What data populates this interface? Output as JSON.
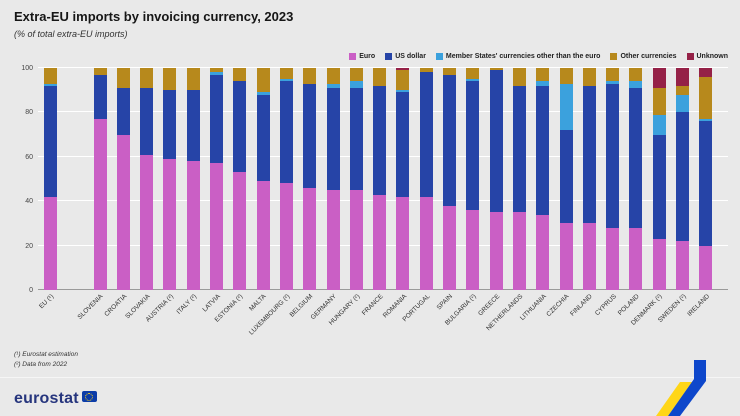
{
  "chart_data": {
    "type": "bar",
    "stacked": true,
    "title": "Extra-EU imports by invoicing currency, 2023",
    "subtitle": "(% of total extra-EU imports)",
    "ylabel": "",
    "xlabel": "",
    "ylim": [
      0,
      100
    ],
    "yticks": [
      0,
      20,
      40,
      60,
      80,
      100
    ],
    "grid": "horizontal-white",
    "legend_position": "top",
    "categories": [
      "EU (¹)",
      "SLOVENIA",
      "CROATIA",
      "SLOVAKIA",
      "AUSTRIA (²)",
      "ITALY (²)",
      "LATVIA",
      "ESTONIA (²)",
      "MALTA",
      "LUXEMBOURG (²)",
      "BELGIUM",
      "GERMANY",
      "HUNGARY (²)",
      "FRANCE",
      "ROMANIA",
      "PORTUGAL",
      "SPAIN",
      "BULGARIA (²)",
      "GREECE",
      "NETHERLANDS",
      "LITHUANIA",
      "CZECHIA",
      "FINLAND",
      "CYPRUS",
      "POLAND",
      "DENMARK (²)",
      "SWEDEN (²)",
      "IRELAND"
    ],
    "series": [
      {
        "name": "Euro",
        "color": "#ca5fc5",
        "values": [
          42,
          77,
          70,
          61,
          59,
          58,
          57,
          53,
          49,
          48,
          46,
          45,
          45,
          43,
          42,
          42,
          38,
          36,
          35,
          35,
          34,
          30,
          30,
          28,
          28,
          23,
          22,
          20
        ]
      },
      {
        "name": "US dollar",
        "color": "#2644a7",
        "values": [
          50,
          20,
          21,
          30,
          31,
          32,
          40,
          41,
          39,
          46,
          47,
          46,
          46,
          49,
          47,
          56,
          59,
          58,
          64,
          57,
          58,
          42,
          62,
          65,
          63,
          47,
          58,
          56
        ]
      },
      {
        "name": "Member States' currencies other than the euro",
        "color": "#3ba1dd",
        "values": [
          1,
          0,
          0,
          0,
          0,
          0,
          1,
          0,
          1,
          1,
          0,
          2,
          3,
          0,
          1,
          0,
          0,
          1,
          0,
          0,
          2,
          21,
          0,
          1,
          3,
          9,
          8,
          1
        ]
      },
      {
        "name": "Other currencies",
        "color": "#b7891c",
        "values": [
          7,
          3,
          9,
          9,
          10,
          10,
          2,
          6,
          11,
          5,
          7,
          7,
          6,
          8,
          9,
          2,
          3,
          5,
          1,
          8,
          6,
          7,
          8,
          6,
          6,
          12,
          4,
          19
        ]
      },
      {
        "name": "Unknown",
        "color": "#952147",
        "values": [
          0,
          0,
          0,
          0,
          0,
          0,
          0,
          0,
          0,
          0,
          0,
          0,
          0,
          0,
          1,
          0,
          0,
          0,
          0,
          0,
          0,
          0,
          0,
          0,
          0,
          9,
          8,
          4
        ]
      }
    ]
  },
  "footnotes": [
    "(¹) Eurostat estimation",
    "(²) Data from 2022"
  ],
  "footer": {
    "brand": "eurostat"
  },
  "brand_colors": {
    "blue": "#0E47CB",
    "yellow": "#FFD617"
  }
}
